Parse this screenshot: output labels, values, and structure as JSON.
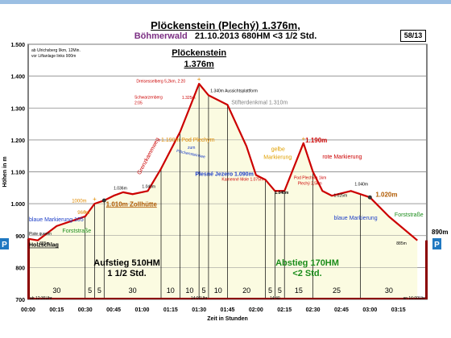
{
  "page": {
    "title": "Plöckenstein (Plechý) 1.376m,",
    "subtitle_region": "Böhmerwald",
    "subtitle_rest": "21.10.2013   680HM   <3 1/2 Std.",
    "page_number": "58/13"
  },
  "chart_data": {
    "type": "area",
    "title": "Plöckenstein (Plechý) 1.376m,",
    "xlabel": "Zeit in Stunden",
    "ylabel": "Höhen in m",
    "ylim": [
      700,
      1500
    ],
    "yticks": [
      700,
      800,
      900,
      1000,
      1100,
      1200,
      1300,
      1400,
      1500
    ],
    "ytick_labels": [
      "700",
      "800",
      "900",
      "1.000",
      "1.100",
      "1.200",
      "1.300",
      "1.400",
      "1.500"
    ],
    "xlim": [
      0,
      210
    ],
    "xticks": [
      0,
      15,
      30,
      45,
      60,
      75,
      90,
      105,
      120,
      135,
      150,
      165,
      180,
      195
    ],
    "xtick_labels": [
      "00:00",
      "00:15",
      "00:30",
      "00:45",
      "01:00",
      "01:15",
      "01:30",
      "01:45",
      "02:00",
      "02:15",
      "02:30",
      "02:45",
      "03:00",
      "03:15"
    ],
    "grid": true,
    "series": [
      {
        "x": [
          0,
          5,
          15,
          30,
          35,
          40,
          45,
          50,
          55,
          63,
          70,
          80,
          85,
          90,
          95,
          105,
          115,
          120,
          125,
          130,
          135,
          145,
          150,
          155,
          160,
          170,
          180,
          190,
          205
        ],
        "y": [
          890,
          885,
          930,
          960,
          1000,
          1010,
          1025,
          1036,
          1030,
          1040,
          1110,
          1225,
          1300,
          1376,
          1340,
          1310,
          1180,
          1090,
          1075,
          1040,
          1040,
          1190,
          1100,
          1040,
          1025,
          1040,
          1020,
          960,
          885
        ]
      }
    ],
    "segment_labels": [
      "30",
      "5",
      "5",
      "30",
      "10",
      "10",
      "5",
      "10",
      "20",
      "5",
      "5",
      "15",
      "25",
      "30"
    ],
    "segment_bounds": [
      0,
      30,
      35,
      40,
      70,
      80,
      90,
      95,
      105,
      125,
      130,
      135,
      150,
      175,
      205
    ],
    "side_labels": {
      "left_p": "P",
      "right_p": "P",
      "right_elev": "890m"
    },
    "start_time": "ab 12:36Uhr",
    "end_time": "an 16:00Uhr",
    "mid_time_left": "14:06Uhr",
    "mid_time_right": "14:40",
    "top_note": [
      "ab Ulrichsberg 9km, 12Min.",
      "vor Liftanlage links 900m"
    ],
    "summit_label": "Plöckenstein",
    "summit_label2": "1.376m",
    "up_label": "Aufstieg 510HM",
    "up_label2": "1 1/2 Std.",
    "down_label": "Abstieg 170HM",
    "down_label2": "<2 Std.",
    "annotations": {
      "piste": "Piste queren",
      "holzschlag": "Holzschlag",
      "e885l": "885m",
      "blau105": "blaue Markierung 105",
      "forst1": "Forststraße",
      "e960": "960m",
      "e1000": "1000m",
      "zollhuette": "1.010m Zollhütte",
      "e1036": "1.036m",
      "e1040a": "1.040m",
      "grenzkamm": "Grenzkammweg",
      "dreisessel": "Dreisesselberg 5,2km, 2:20",
      "schwarzen1": "Schwarzenberg",
      "schwarzen2": "2:05",
      "e1325": "1.325m",
      "aussicht": "1.340m Aussichtsplattform",
      "stifter": "Stifterdenkmal 1.310m",
      "pod1190": "1.190m Pod Plechým",
      "zum": "zum",
      "ploeckensee": "Plöckensteinsee",
      "e1090": "Plesné Jezero 1.090m",
      "kamenne": "Kamenné Mole 1.075m",
      "gelbe1": "gelbe",
      "gelbe2": "Markierung",
      "e1040b": "1.040m",
      "podpl1": "Pod Plechým 1km",
      "podpl2": "Plechý 2,5km",
      "e1190b": "1.190m",
      "rote": "rote Markierung",
      "e1025": "1.025m",
      "e1040c": "1.040m",
      "e1020": "1.020m",
      "blau2": "blaue Markierung",
      "forst2": "Forststraße",
      "e885r": "885m"
    }
  }
}
